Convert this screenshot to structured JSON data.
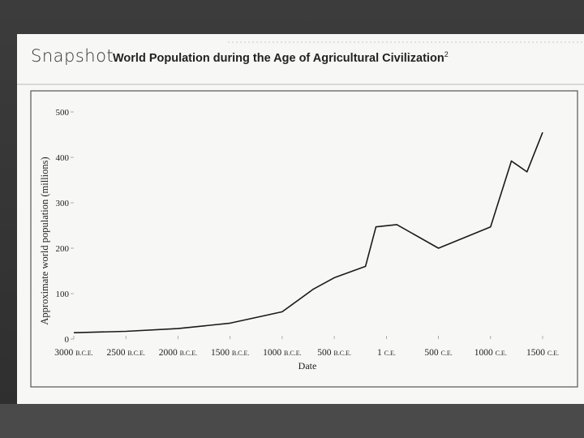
{
  "header": {
    "logo_text": "Snapshot",
    "title": "World Population during the Age of Agricultural Civilization",
    "title_note_mark": "2"
  },
  "chart_data": {
    "type": "line",
    "title": "World Population during the Age of Agricultural Civilization",
    "xlabel": "Date",
    "ylabel": "Approximate world population (millions)",
    "xlim": [
      -3000,
      1500
    ],
    "ylim": [
      0,
      500
    ],
    "x_tick_values": [
      -3000,
      -2500,
      -2000,
      -1500,
      -1000,
      -500,
      1,
      500,
      1000,
      1500
    ],
    "x_tick_labels": [
      {
        "num": "3000",
        "era": "B.C.E."
      },
      {
        "num": "2500",
        "era": "B.C.E."
      },
      {
        "num": "2000",
        "era": "B.C.E."
      },
      {
        "num": "1500",
        "era": "B.C.E."
      },
      {
        "num": "1000",
        "era": "B.C.E."
      },
      {
        "num": "500",
        "era": "B.C.E."
      },
      {
        "num": "1",
        "era": "C.E."
      },
      {
        "num": "500",
        "era": "C.E."
      },
      {
        "num": "1000",
        "era": "C.E."
      },
      {
        "num": "1500",
        "era": "C.E."
      }
    ],
    "y_ticks": [
      0,
      100,
      200,
      300,
      400,
      500
    ],
    "series": [
      {
        "x": [
          -3000,
          -2500,
          -2000,
          -1500,
          -1200,
          -1000,
          -700,
          -500,
          -200,
          -100,
          100,
          500,
          1000,
          1200,
          1350,
          1500
        ],
        "y": [
          14,
          17,
          23,
          35,
          50,
          60,
          110,
          135,
          160,
          247,
          252,
          200,
          247,
          392,
          368,
          455
        ]
      }
    ]
  }
}
